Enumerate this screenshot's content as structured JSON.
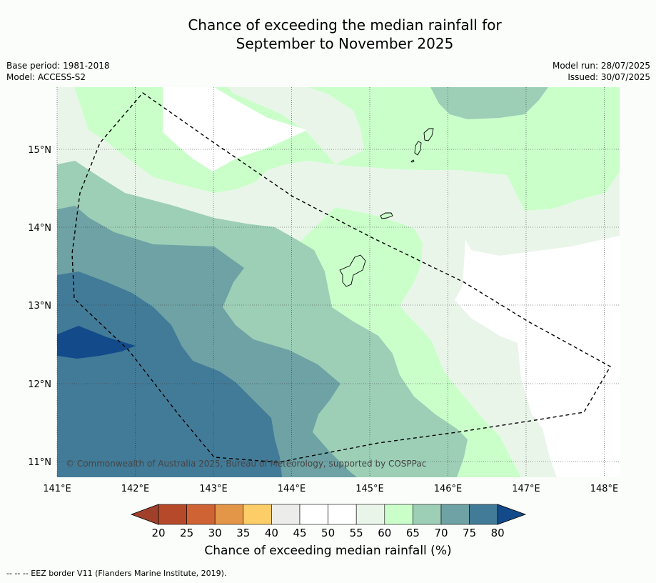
{
  "title_line1": "Chance of exceeding the median rainfall for",
  "title_line2": "September to November 2025",
  "meta": {
    "base_period": "Base period: 1981-2018",
    "model": "Model: ACCESS-S2",
    "model_run": "Model run: 28/07/2025",
    "issued": "Issued: 30/07/2025"
  },
  "axes": {
    "lon_ticks": [
      "141°E",
      "142°E",
      "143°E",
      "144°E",
      "145°E",
      "146°E",
      "147°E",
      "148°E"
    ],
    "lat_ticks": [
      "15°N",
      "14°N",
      "13°N",
      "12°N",
      "11°N"
    ]
  },
  "copyright": "© Commonwealth of Australia 2025, Bureau of Meteorology, supported by COSPPac",
  "colorbar": {
    "label": "Chance of exceeding median rainfall (%)",
    "ticks": [
      "20",
      "25",
      "30",
      "35",
      "40",
      "45",
      "50",
      "55",
      "60",
      "65",
      "70",
      "75",
      "80"
    ],
    "low_extend_color": "#a0402a",
    "high_extend_color": "#134a8a",
    "colors": [
      "#b5492a",
      "#cf6333",
      "#e39647",
      "#fdcd68",
      "#ececea",
      "#ffffff",
      "#ffffff",
      "#eaf5ea",
      "#caffca",
      "#9dcfb7",
      "#6ea2a4",
      "#427b98"
    ]
  },
  "footnote": "--  --  -- EEZ border V11 (Flanders Marine Institute, 2019)."
}
